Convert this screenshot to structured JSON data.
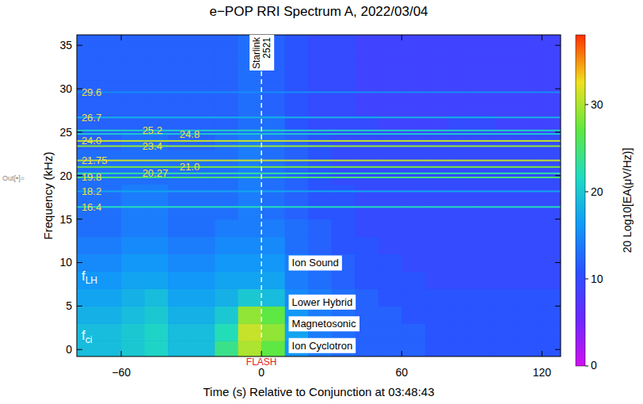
{
  "chart_data": {
    "type": "heatmap",
    "title": "e−POP RRI Spectrum A, 2022/03/04",
    "x_label": "Time (s) Relative to Conjunction at 03:48:43",
    "y_label": "Frequency (kHz)",
    "prefix": "Out[•]=",
    "xlim": [
      -79,
      128
    ],
    "xticks": [
      -60,
      0,
      60,
      120
    ],
    "ylim": [
      -0.8,
      36.2
    ],
    "yticks": [
      0,
      5,
      10,
      15,
      20,
      25,
      30,
      35
    ],
    "x": [
      -75,
      -65,
      -55,
      -45,
      -35,
      -25,
      -15,
      -5,
      5,
      15,
      25,
      35,
      45,
      55,
      65,
      75,
      85,
      95,
      105,
      115,
      125
    ],
    "y": [
      0,
      2,
      4,
      6,
      8,
      10,
      12,
      14,
      16,
      18,
      20,
      22,
      24,
      26,
      28,
      30,
      32,
      34,
      36
    ],
    "cells": [
      [
        19,
        19,
        20,
        21,
        19,
        19,
        24,
        30,
        27,
        16,
        14,
        13,
        12,
        12,
        12,
        11,
        11,
        11,
        11,
        11,
        11
      ],
      [
        19,
        19,
        20,
        21,
        19,
        19,
        22,
        31,
        29,
        17,
        14,
        13,
        12,
        12,
        12,
        11,
        11,
        11,
        11,
        11,
        11
      ],
      [
        18,
        18,
        19,
        20,
        18,
        18,
        20,
        29,
        27,
        16,
        14,
        13,
        12,
        12,
        11,
        11,
        11,
        11,
        11,
        11,
        11
      ],
      [
        17,
        17,
        18,
        19,
        17,
        17,
        18,
        20,
        19,
        15,
        14,
        13,
        12,
        11,
        11,
        11,
        11,
        11,
        11,
        11,
        11
      ],
      [
        16,
        16,
        17,
        17,
        16,
        16,
        17,
        17,
        17,
        14,
        13,
        12,
        11,
        11,
        11,
        10,
        10,
        10,
        10,
        10,
        10
      ],
      [
        15,
        15,
        16,
        16,
        15,
        15,
        16,
        16,
        16,
        14,
        13,
        12,
        11,
        11,
        10,
        10,
        10,
        10,
        10,
        10,
        10
      ],
      [
        14,
        14,
        15,
        15,
        14,
        14,
        15,
        15,
        15,
        13,
        12,
        11,
        11,
        10,
        10,
        10,
        10,
        10,
        10,
        10,
        10
      ],
      [
        13,
        13,
        14,
        14,
        13,
        13,
        14,
        14,
        14,
        13,
        12,
        11,
        10,
        10,
        10,
        10,
        10,
        10,
        10,
        10,
        10
      ],
      [
        13,
        13,
        14,
        14,
        13,
        13,
        13,
        14,
        13,
        12,
        11,
        11,
        10,
        10,
        10,
        10,
        10,
        10,
        10,
        10,
        10
      ],
      [
        13,
        13,
        14,
        14,
        13,
        13,
        13,
        14,
        13,
        12,
        11,
        11,
        10,
        10,
        10,
        10,
        10,
        10,
        10,
        10,
        10
      ],
      [
        13,
        13,
        13,
        13,
        13,
        13,
        13,
        14,
        13,
        12,
        11,
        10,
        10,
        10,
        10,
        10,
        10,
        10,
        10,
        10,
        10
      ],
      [
        13,
        13,
        13,
        13,
        13,
        13,
        13,
        14,
        13,
        12,
        11,
        10,
        10,
        10,
        10,
        10,
        10,
        10,
        10,
        10,
        10
      ],
      [
        12,
        12,
        13,
        13,
        12,
        12,
        13,
        14,
        13,
        12,
        11,
        10,
        10,
        10,
        10,
        10,
        10,
        10,
        10,
        10,
        10
      ],
      [
        12,
        12,
        12,
        12,
        12,
        12,
        12,
        13,
        13,
        11,
        10,
        10,
        10,
        9,
        9,
        9,
        10,
        10,
        9,
        9,
        9
      ],
      [
        12,
        12,
        12,
        12,
        12,
        12,
        12,
        13,
        12,
        11,
        10,
        10,
        9,
        9,
        9,
        9,
        9,
        9,
        9,
        9,
        9
      ],
      [
        12,
        12,
        12,
        12,
        12,
        12,
        12,
        13,
        12,
        11,
        10,
        10,
        9,
        9,
        9,
        9,
        9,
        9,
        9,
        9,
        9
      ],
      [
        12,
        12,
        12,
        12,
        12,
        12,
        12,
        13,
        12,
        11,
        10,
        10,
        9,
        9,
        9,
        9,
        9,
        9,
        9,
        9,
        9
      ],
      [
        12,
        12,
        12,
        12,
        12,
        12,
        12,
        13,
        12,
        11,
        10,
        10,
        9,
        9,
        9,
        9,
        9,
        9,
        9,
        9,
        9
      ],
      [
        12,
        12,
        12,
        12,
        12,
        12,
        12,
        13,
        12,
        11,
        10,
        10,
        9,
        9,
        9,
        9,
        9,
        9,
        9,
        9,
        9
      ]
    ],
    "lines": [
      {
        "y": 29.6,
        "label": "29.6",
        "label_x": -77,
        "value": 15
      },
      {
        "y": 26.7,
        "label": "26.7",
        "label_x": -77,
        "value": 18
      },
      {
        "y": 24.0,
        "label": "24.0",
        "label_x": -77,
        "value": 31
      },
      {
        "y": 21.75,
        "label": "21.75",
        "label_x": -77,
        "value": 31
      },
      {
        "y": 19.8,
        "label": "19.8",
        "label_x": -77,
        "value": 25
      },
      {
        "y": 18.2,
        "label": "18.2",
        "label_x": -77,
        "value": 17
      },
      {
        "y": 16.4,
        "label": "16.4",
        "label_x": -77,
        "value": 22
      },
      {
        "y": 25.2,
        "label": "25.2",
        "label_x": -51,
        "value": 21
      },
      {
        "y": 23.4,
        "label": "23.4",
        "label_x": -51,
        "value": 29
      },
      {
        "y": 20.27,
        "label": "20.27",
        "label_x": -51,
        "value": 23
      },
      {
        "y": 24.8,
        "label": "24.8",
        "label_x": -35,
        "value": 20
      },
      {
        "y": 21.0,
        "label": "21.0",
        "label_x": -35,
        "value": 28
      }
    ],
    "boxed_labels": [
      {
        "text": "Ion Sound",
        "x": 13,
        "y": 10.0
      },
      {
        "text": "Lower Hybrid",
        "x": 13,
        "y": 5.5
      },
      {
        "text": "Magnetosonic",
        "x": 13,
        "y": 3.0
      },
      {
        "text": "Ion Cyclotron",
        "x": 13,
        "y": 0.5
      }
    ],
    "labels": [
      {
        "text": "fLH",
        "x": -77,
        "y": 8.5
      },
      {
        "text": "fci",
        "x": -77,
        "y": 1.7
      }
    ],
    "event": {
      "x": 0,
      "label": "Starlink 2521",
      "flash": "FLASH"
    },
    "colorbar": {
      "label": "20 Log10[EA(μV/Hz)]",
      "range": [
        0,
        38
      ],
      "ticks": [
        0,
        10,
        20,
        30
      ],
      "colors": [
        "#d010f0",
        "#6a28ff",
        "#2a52ff",
        "#109cf8",
        "#20dcc0",
        "#60e840",
        "#f0e020",
        "#ff3000"
      ]
    }
  }
}
